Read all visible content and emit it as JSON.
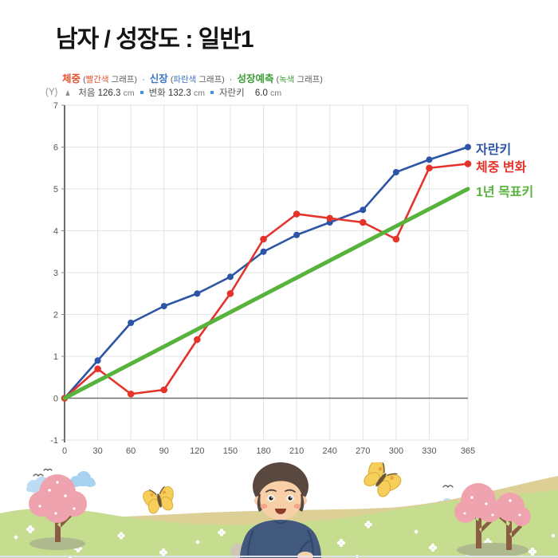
{
  "title": "남자 / 성장도 : 일반1",
  "legend": {
    "paren_open": "(",
    "paren_close": ")",
    "separator": "·",
    "items": [
      {
        "name": "체중",
        "color_word": "빨간색",
        "suffix": "그래프",
        "color": "#e8512e"
      },
      {
        "name": "신장",
        "color_word": "파란색",
        "suffix": "그래프",
        "color": "#3b76c8"
      },
      {
        "name": "성장예측",
        "color_word": "녹색",
        "suffix": "그래프",
        "color": "#3da03a"
      }
    ]
  },
  "info_bar": {
    "axis": "(Y)",
    "arrow_icon": "▲",
    "items": [
      {
        "label": "처음",
        "value": "126.3",
        "unit": "cm"
      },
      {
        "label": "변화",
        "value": "132.3",
        "unit": "cm"
      },
      {
        "label": "자란키",
        "value": "6.0",
        "unit": "cm"
      }
    ]
  },
  "chart_data": {
    "type": "line",
    "x": [
      0,
      30,
      60,
      90,
      120,
      150,
      180,
      210,
      240,
      270,
      300,
      330,
      365
    ],
    "x_tick_labels": [
      "0",
      "30",
      "60",
      "90",
      "120",
      "150",
      "180",
      "210",
      "240",
      "270",
      "300",
      "330",
      "365"
    ],
    "y_ticks": [
      -1,
      0,
      1,
      2,
      3,
      4,
      5,
      6,
      7
    ],
    "xlim": [
      0,
      365
    ],
    "ylim": [
      -1,
      7
    ],
    "grid": true,
    "legend_position": "right-of-line-ends",
    "series": [
      {
        "end_label": "자란키",
        "color": "#2d54a7",
        "values": [
          0,
          0.9,
          1.8,
          2.2,
          2.5,
          2.9,
          3.5,
          3.9,
          4.2,
          4.5,
          5.4,
          5.7,
          6.0
        ],
        "markers": true,
        "marker_r": 4,
        "width": 2.6
      },
      {
        "end_label": "체중 변화",
        "color": "#e5332a",
        "values": [
          0,
          0.7,
          0.1,
          0.2,
          1.4,
          2.5,
          3.8,
          4.4,
          4.3,
          4.2,
          3.8,
          5.5,
          5.6
        ],
        "markers": true,
        "marker_r": 4.3,
        "width": 2.6
      },
      {
        "end_label": "1년 목표키",
        "color": "#57b33c",
        "x": [
          0,
          365
        ],
        "values": [
          0,
          5.0
        ],
        "markers": false,
        "marker_r": 0,
        "width": 5
      }
    ]
  }
}
